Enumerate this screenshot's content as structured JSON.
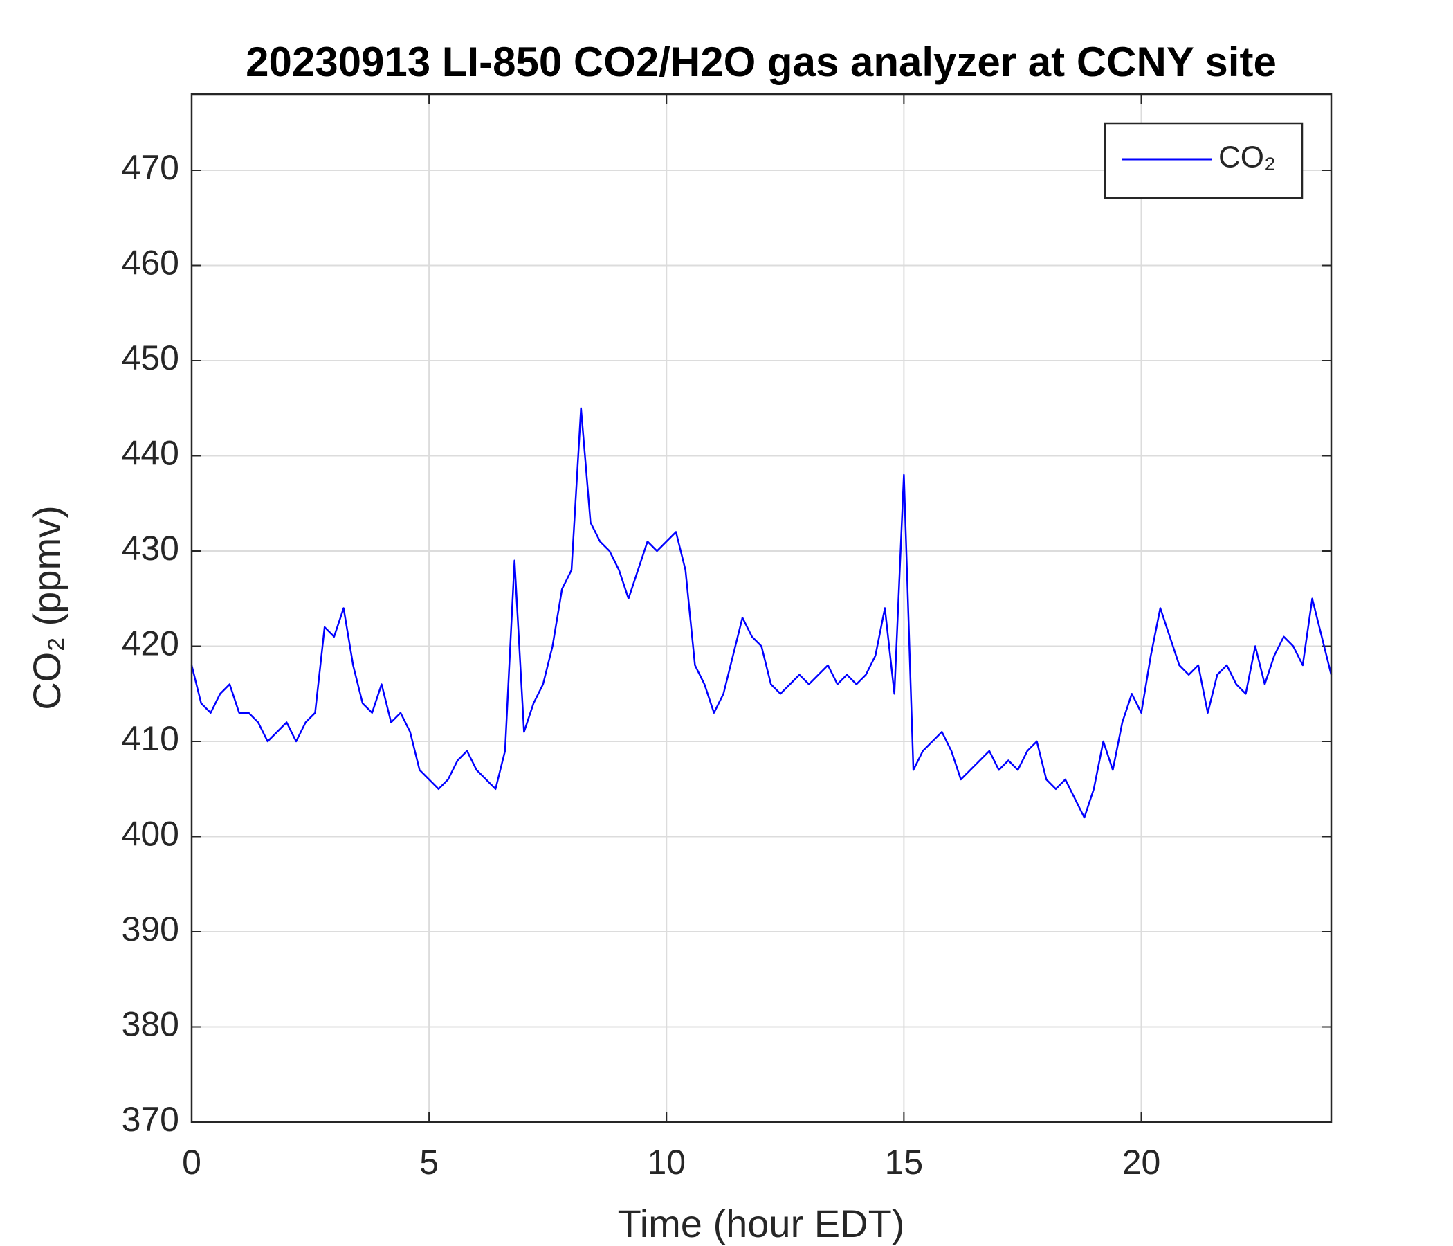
{
  "chart_data": {
    "type": "line",
    "title": "20230913 LI-850 CO2/H2O gas analyzer at CCNY site",
    "xlabel": "Time (hour EDT)",
    "ylabel": "CO₂ (ppmv)",
    "xlim": [
      0,
      24
    ],
    "ylim": [
      370,
      478
    ],
    "xticks": [
      0,
      5,
      10,
      15,
      20
    ],
    "yticks": [
      370,
      380,
      390,
      400,
      410,
      420,
      430,
      440,
      450,
      460,
      470
    ],
    "grid": true,
    "legend": "upper right",
    "x": [
      0,
      0.2,
      0.4,
      0.6,
      0.8,
      1,
      1.2,
      1.4,
      1.6,
      1.8,
      2,
      2.2,
      2.4,
      2.6,
      2.8,
      3,
      3.2,
      3.4,
      3.6,
      3.8,
      4,
      4.2,
      4.4,
      4.6,
      4.8,
      5,
      5.2,
      5.4,
      5.6,
      5.8,
      6,
      6.2,
      6.4,
      6.6,
      6.8,
      7,
      7.2,
      7.4,
      7.6,
      7.8,
      8,
      8.2,
      8.4,
      8.6,
      8.8,
      9,
      9.2,
      9.4,
      9.6,
      9.8,
      10,
      10.2,
      10.4,
      10.6,
      10.8,
      11,
      11.2,
      11.4,
      11.6,
      11.8,
      12,
      12.2,
      12.4,
      12.6,
      12.8,
      13,
      13.2,
      13.4,
      13.6,
      13.8,
      14,
      14.2,
      14.4,
      14.6,
      14.8,
      15,
      15.2,
      15.4,
      15.6,
      15.8,
      16,
      16.2,
      16.4,
      16.6,
      16.8,
      17,
      17.2,
      17.4,
      17.6,
      17.8,
      18,
      18.2,
      18.4,
      18.6,
      18.8,
      19,
      19.2,
      19.4,
      19.6,
      19.8,
      20,
      20.2,
      20.4,
      20.6,
      20.8,
      21,
      21.2,
      21.4,
      21.6,
      21.8,
      22,
      22.2,
      22.4,
      22.6,
      22.8,
      23,
      23.2,
      23.4,
      23.6,
      23.8,
      24
    ],
    "series": [
      {
        "name": "CO₂",
        "color": "#0000ff",
        "values": [
          418,
          414,
          413,
          415,
          416,
          413,
          413,
          412,
          410,
          411,
          412,
          410,
          412,
          413,
          422,
          421,
          424,
          418,
          414,
          413,
          416,
          412,
          413,
          411,
          407,
          406,
          405,
          406,
          408,
          409,
          407,
          406,
          405,
          409,
          429,
          411,
          414,
          416,
          420,
          426,
          428,
          445,
          433,
          431,
          430,
          428,
          425,
          428,
          431,
          430,
          431,
          432,
          428,
          418,
          416,
          413,
          415,
          419,
          423,
          421,
          420,
          416,
          415,
          416,
          417,
          416,
          417,
          418,
          416,
          417,
          416,
          417,
          419,
          424,
          415,
          438,
          407,
          409,
          410,
          411,
          409,
          406,
          407,
          408,
          409,
          407,
          408,
          407,
          409,
          410,
          406,
          405,
          406,
          404,
          402,
          405,
          410,
          407,
          412,
          415,
          413,
          419,
          424,
          421,
          418,
          417,
          418,
          413,
          417,
          418,
          416,
          415,
          420,
          416,
          419,
          421,
          420,
          418,
          425,
          421,
          417
        ]
      }
    ]
  }
}
